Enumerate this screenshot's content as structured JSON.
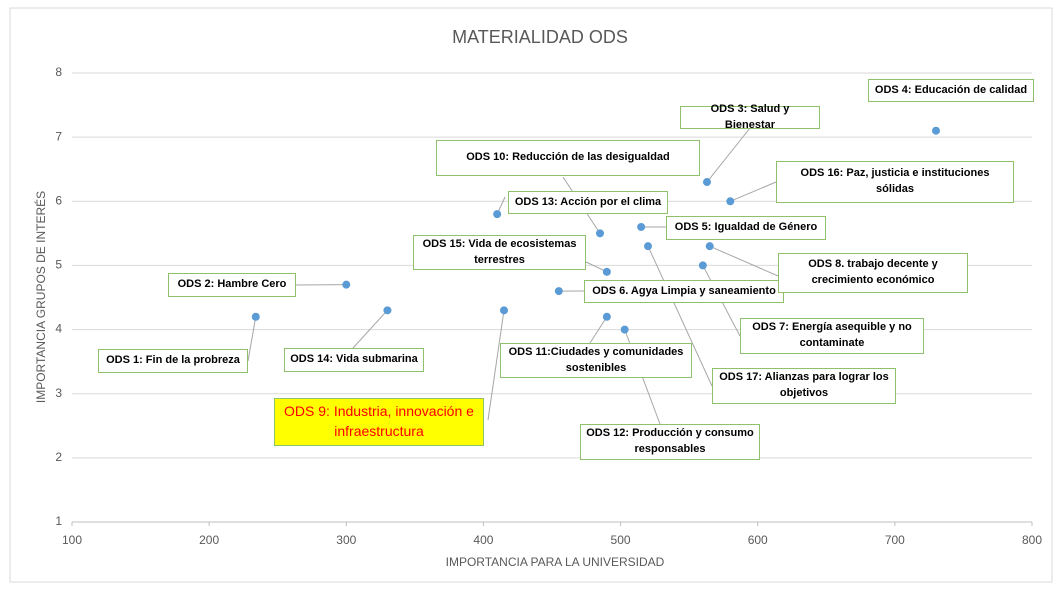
{
  "chart_data": {
    "type": "scatter",
    "title": "MATERIALIDAD ODS",
    "x_label": "IMPORTANCIA PARA LA UNIVERSIDAD",
    "y_label": "IMPORTANCIA GRUPOS DE INTERÉS",
    "xlim": [
      100,
      800
    ],
    "xticks": [
      100,
      200,
      300,
      400,
      500,
      600,
      700,
      800
    ],
    "ylim": [
      1,
      8
    ],
    "yticks": [
      1,
      2,
      3,
      4,
      5,
      6,
      7,
      8
    ],
    "grid": true,
    "series": [
      {
        "color": "#5b9bd5",
        "x": [
          234,
          300,
          563,
          730,
          515,
          455,
          560,
          565,
          415,
          485,
          490,
          503,
          410,
          330,
          490,
          580,
          520
        ],
        "values": [
          4.2,
          4.7,
          6.3,
          7.1,
          5.6,
          4.6,
          5.0,
          5.3,
          4.3,
          5.5,
          4.2,
          4.0,
          5.8,
          4.3,
          4.9,
          6.0,
          5.3
        ],
        "labels": [
          "ODS 1: Fin de la probreza",
          "ODS 2: Hambre Cero",
          "ODS 3: Salud y Bienestar",
          "ODS 4: Educación de calidad",
          "ODS 5: Igualdad de Género",
          "ODS 6. Agya Limpia y saneamiento",
          "ODS 7: Energía asequible y no contaminate",
          "ODS 8. trabajo decente y crecimiento económico",
          "ODS 9: Industria, innovación e infraestructura",
          "ODS 10: Reducción de las desigualdad",
          "ODS 11:Ciudades y comunidades sostenibles",
          "ODS 12: Producción y consumo responsables",
          "ODS 13: Acción por el clima",
          "ODS 14: Vida submarina",
          "ODS 15:  Vida de ecosistemas terrestres",
          "ODS 16: Paz, justicia e instituciones sólidas",
          "ODS 17: Alianzas para lograr los objetivos"
        ]
      }
    ]
  }
}
